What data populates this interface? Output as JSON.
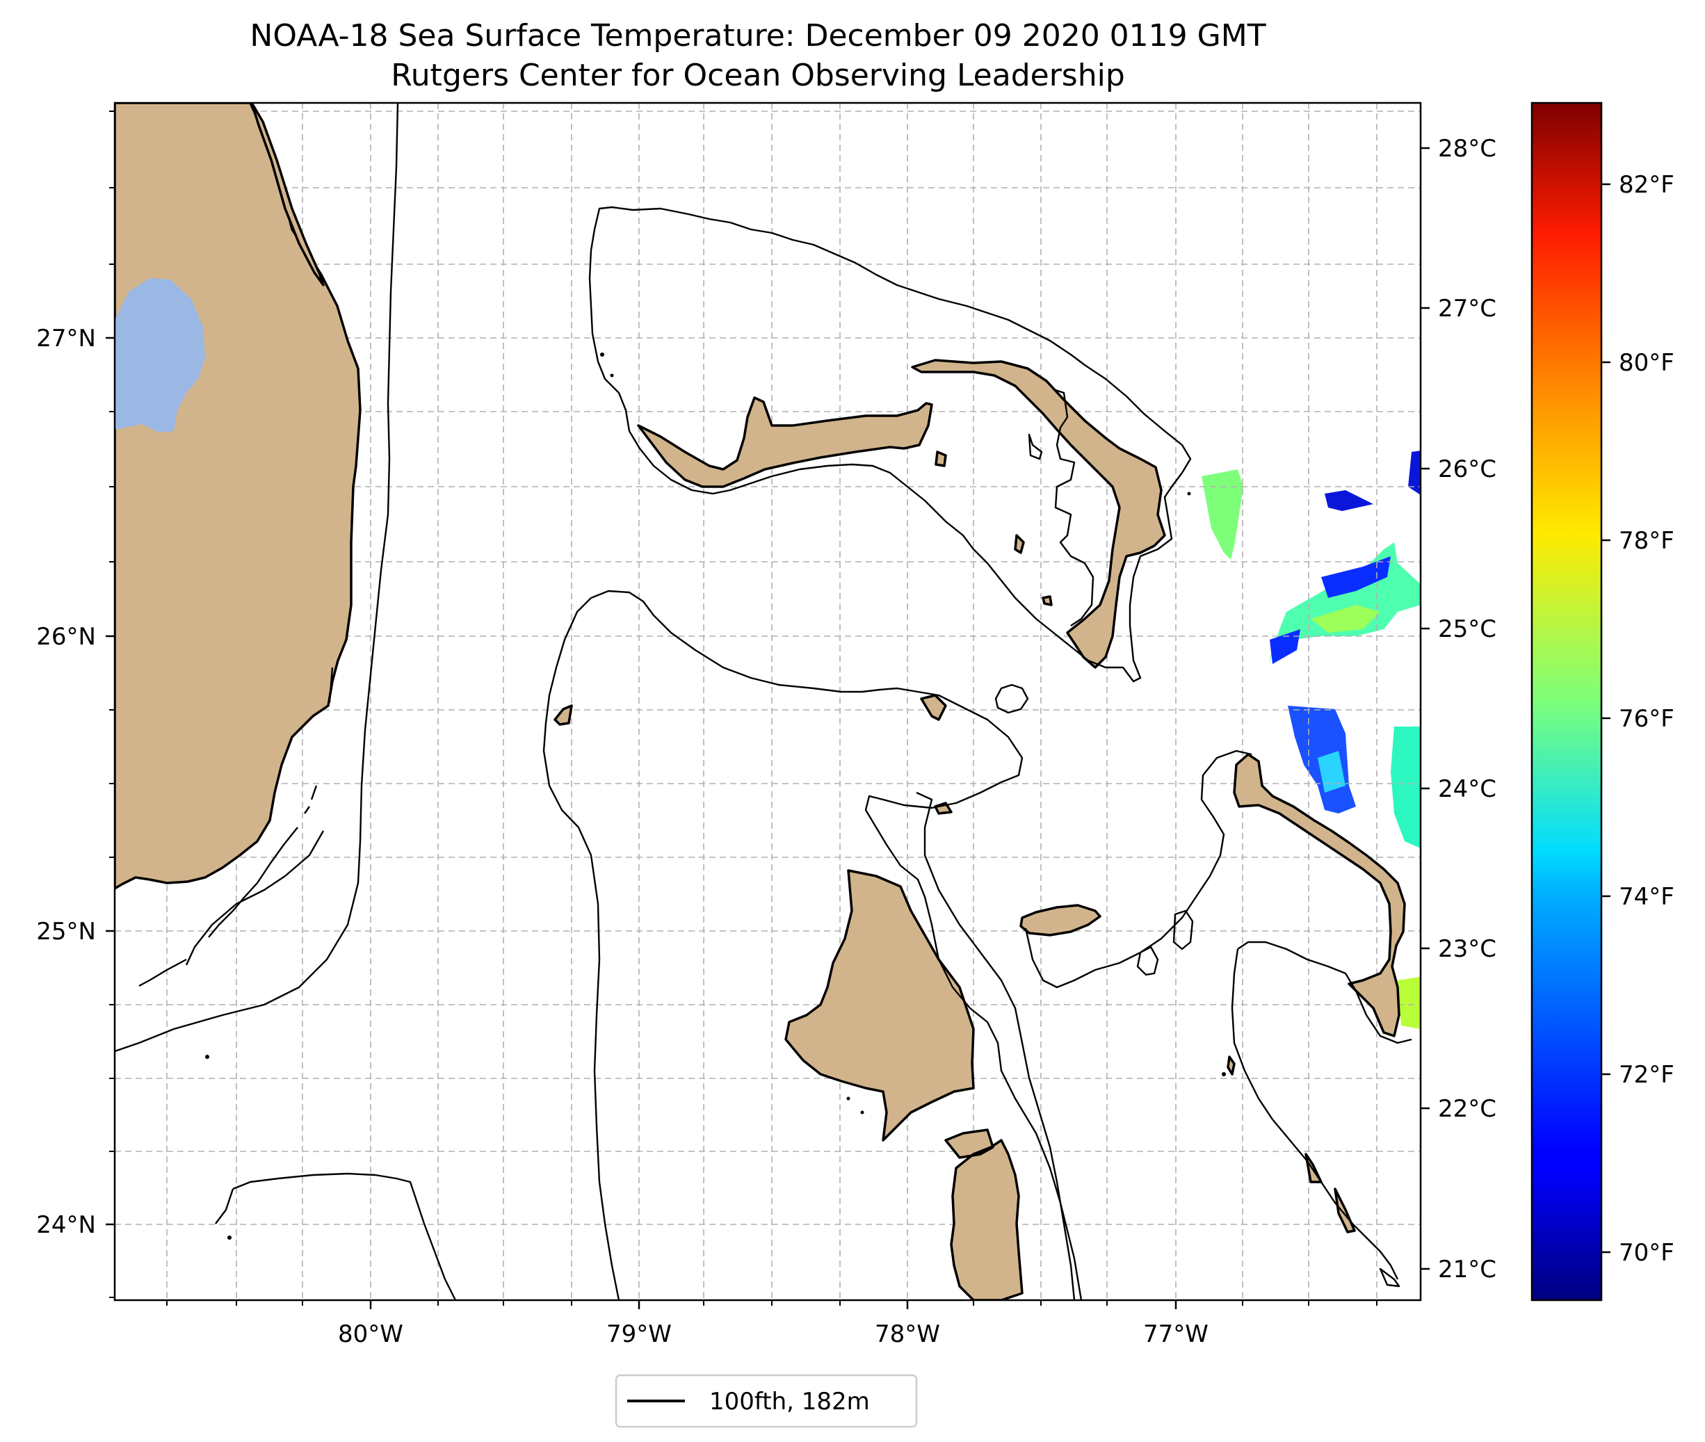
{
  "title": {
    "line1": "NOAA-18 Sea Surface Temperature: December 09 2020 0119 GMT",
    "line2": "Rutgers Center for Ocean Observing Leadership"
  },
  "map": {
    "extent": {
      "lon_min": -80.95,
      "lon_max": -76.1,
      "lat_min": 23.75,
      "lat_max": 27.8
    },
    "longitude_ticks": [
      {
        "value": -80,
        "label": "80°W"
      },
      {
        "value": -79,
        "label": "79°W"
      },
      {
        "value": -78,
        "label": "78°W"
      },
      {
        "value": -77,
        "label": "77°W"
      }
    ],
    "latitude_ticks": [
      {
        "value": 24,
        "label": "24°N"
      },
      {
        "value": 25,
        "label": "25°N"
      },
      {
        "value": 26,
        "label": "26°N"
      },
      {
        "value": 27,
        "label": "27°N"
      }
    ],
    "gridlines": true,
    "land_color": "#d2b48c",
    "lake_color": "#9bb7e3"
  },
  "secondary_axis": {
    "label": "",
    "ticks": [
      {
        "value": 21,
        "label": "21°C"
      },
      {
        "value": 22,
        "label": "22°C"
      },
      {
        "value": 23,
        "label": "23°C"
      },
      {
        "value": 24,
        "label": "24°C"
      },
      {
        "value": 25,
        "label": "25°C"
      },
      {
        "value": 26,
        "label": "26°C"
      },
      {
        "value": 27,
        "label": "27°C"
      },
      {
        "value": 28,
        "label": "28°C"
      }
    ]
  },
  "colorbar": {
    "colormap": "jet",
    "range_f": [
      69.2,
      83.2
    ],
    "ticks": [
      {
        "value": 70,
        "label": "70°F"
      },
      {
        "value": 72,
        "label": "72°F"
      },
      {
        "value": 74,
        "label": "74°F"
      },
      {
        "value": 76,
        "label": "76°F"
      },
      {
        "value": 78,
        "label": "78°F"
      },
      {
        "value": 80,
        "label": "80°F"
      },
      {
        "value": 82,
        "label": "82°F"
      }
    ]
  },
  "legend": {
    "entry": "100fth, 182m",
    "placement": "bottom-center"
  }
}
